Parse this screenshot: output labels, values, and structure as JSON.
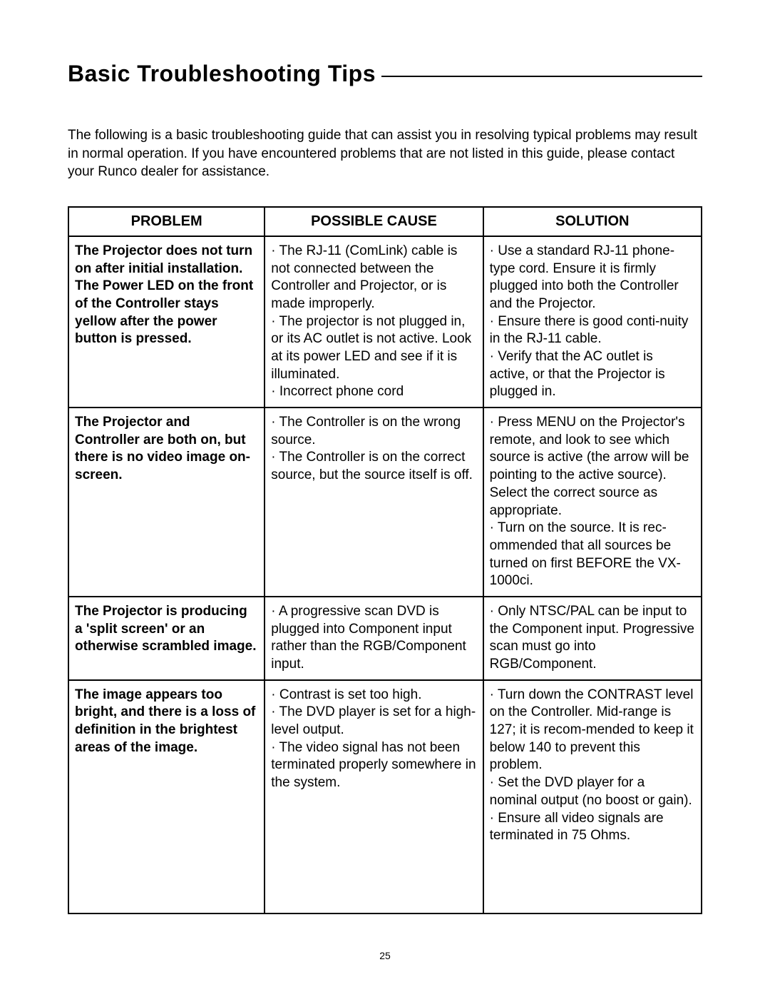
{
  "title": "Basic Troubleshooting Tips",
  "intro": "The following is a basic troubleshooting guide that can assist you in resolving typical problems may result in normal operation. If you have encountered problems that are not listed in this guide, please contact your Runco dealer for assistance.",
  "headers": {
    "problem": "PROBLEM",
    "cause": "POSSIBLE CAUSE",
    "solution": "SOLUTION"
  },
  "rows": [
    {
      "problem": "The Projector does not turn on after initial installation. The Power LED on the front of the Controller stays yellow after the power button is pressed.",
      "cause": "· The RJ-11 (ComLink) cable is not connected between the Controller and Projector, or is made improperly.\n· The projector is not plugged in, or its AC outlet is not active. Look at its power LED and see if it is illuminated.\n· Incorrect phone cord",
      "solution": "· Use a standard RJ-11 phone-type cord. Ensure it is firmly plugged into both the Controller and the Projector.\n· Ensure there is good conti-nuity in the RJ-11 cable.\n· Verify that the AC outlet is active, or that the Projector is plugged in."
    },
    {
      "problem": "The Projector and Controller are both on, but there is no video image on-screen.",
      "cause": "· The Controller is on the wrong source.\n· The Controller is on the correct source, but the source itself is off.",
      "solution": "· Press MENU on the Projector's remote, and look to see which source is active (the arrow will be pointing to the active source). Select the correct source as appropriate.\n· Turn on the source. It is rec-ommended that all sources be turned on first BEFORE the VX-1000ci."
    },
    {
      "problem": "The Projector is producing a 'split screen' or an otherwise scrambled image.",
      "cause": "· A progressive scan DVD is plugged into Component input rather than the RGB/Component input.",
      "solution": "· Only NTSC/PAL can be input to the Component input. Progressive scan must go into RGB/Component."
    },
    {
      "problem": "The image appears too bright, and there is a loss of definition in the brightest areas of the image.",
      "cause": "· Contrast is set too high.\n· The DVD player is set for a high-level output.\n· The video signal has not been terminated properly somewhere in the system.",
      "solution": "· Turn down the CONTRAST level on the Controller. Mid-range is 127; it is recom-mended to keep it below 140 to prevent this problem.\n· Set the DVD player for a nominal output (no boost or gain).\n· Ensure all video signals are terminated in 75 Ohms."
    }
  ],
  "pageNumber": "25"
}
